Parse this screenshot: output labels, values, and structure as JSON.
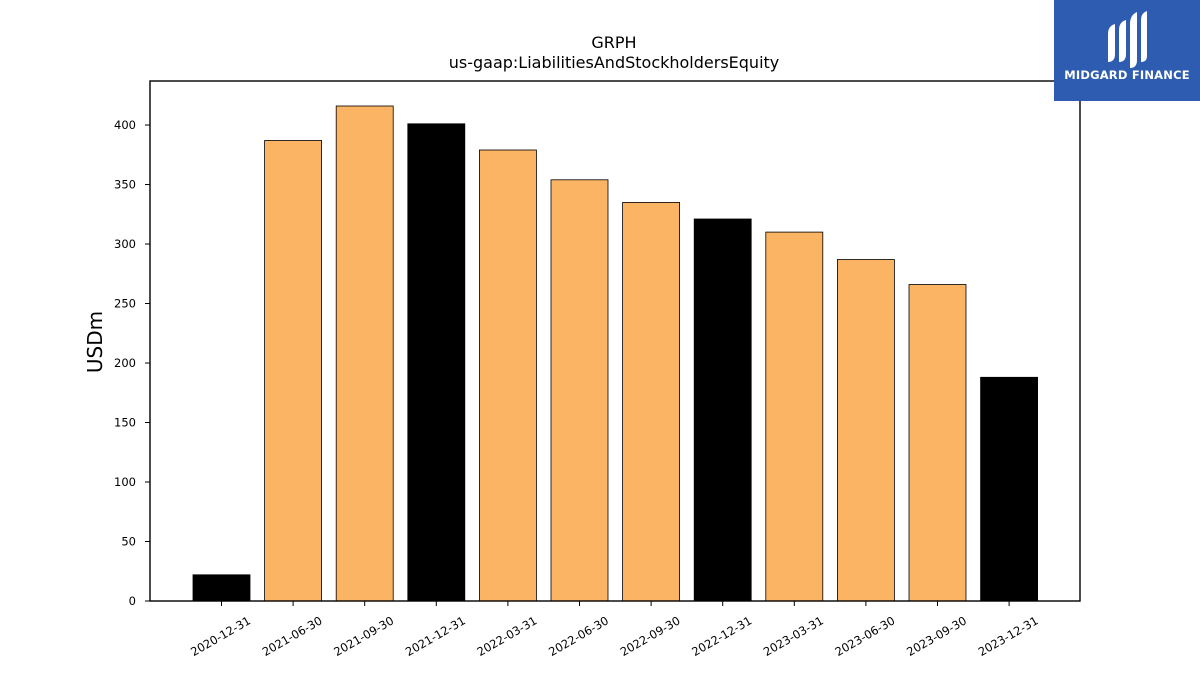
{
  "chart_data": {
    "type": "bar",
    "title": "GRPH",
    "subtitle": "us-gaap:LiabilitiesAndStockholdersEquity",
    "xlabel": "",
    "ylabel": "USDm",
    "categories": [
      "2020-12-31",
      "2021-06-30",
      "2021-09-30",
      "2021-12-31",
      "2022-03-31",
      "2022-06-30",
      "2022-09-30",
      "2022-12-31",
      "2023-03-31",
      "2023-06-30",
      "2023-09-30",
      "2023-12-31"
    ],
    "values": [
      22,
      387,
      416,
      401,
      379,
      354,
      335,
      321,
      310,
      287,
      266,
      188
    ],
    "bar_colors": [
      "#000000",
      "#fbb463",
      "#fbb463",
      "#000000",
      "#fbb463",
      "#fbb463",
      "#fbb463",
      "#000000",
      "#fbb463",
      "#fbb463",
      "#fbb463",
      "#000000"
    ],
    "ylim": [
      0,
      437
    ],
    "yticks": [
      0,
      50,
      100,
      150,
      200,
      250,
      300,
      350,
      400
    ],
    "grid": false,
    "legend": "none"
  },
  "logo": {
    "text": "MIDGARD FINANCE",
    "background": "#2d5cb0"
  }
}
